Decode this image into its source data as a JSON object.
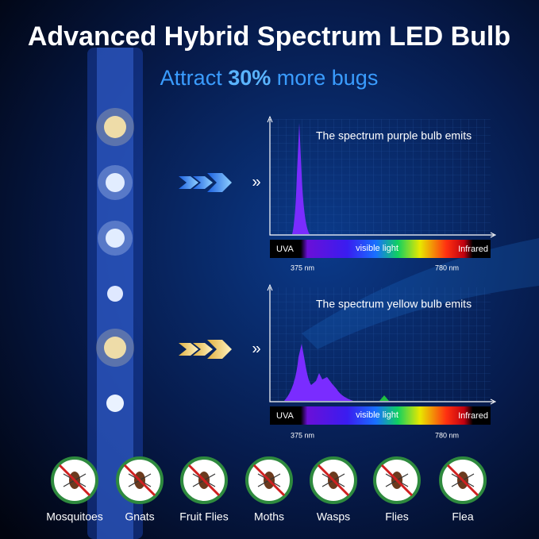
{
  "header": {
    "title": "Advanced Hybrid Spectrum LED Bulb",
    "subtitle": [
      "Attract ",
      "30%",
      " more bugs"
    ]
  },
  "panels": [
    {
      "label": "The spectrum purple bulb emits",
      "uva": "UVA",
      "visible": "visible light",
      "infrared": "Infrared",
      "low": "375 nm",
      "high": "780 nm"
    },
    {
      "label": "The spectrum yellow bulb emits",
      "uva": "UVA",
      "visible": "visible light",
      "infrared": "Infrared",
      "low": "375 nm",
      "high": "780 nm"
    }
  ],
  "bugs": [
    "Mosquitoes",
    "Gnats",
    "Fruit Flies",
    "Moths",
    "Wasps",
    "Flies",
    "Flea"
  ]
}
